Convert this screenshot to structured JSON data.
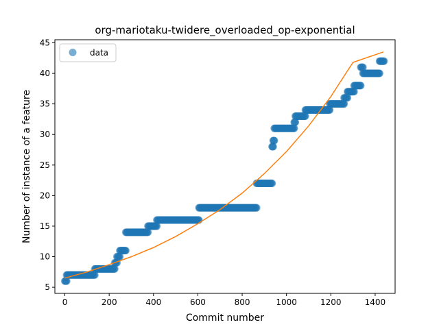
{
  "chart_data": {
    "type": "scatter",
    "title": "org-mariotaku-twidere_overloaded_op-exponential",
    "xlabel": "Commit number",
    "ylabel": "Number of instance of a feature",
    "xlim": [
      -45,
      1490
    ],
    "ylim": [
      4.0,
      45.5
    ],
    "xticks": [
      0,
      200,
      400,
      600,
      800,
      1000,
      1200,
      1400
    ],
    "yticks": [
      5,
      10,
      15,
      20,
      25,
      30,
      35,
      40,
      45
    ],
    "legend": {
      "position": "top-left",
      "entries": [
        "data"
      ]
    },
    "colors": {
      "data": "#1f77b4",
      "fit": "#ff7f0e"
    },
    "series": [
      {
        "name": "data",
        "kind": "scatter",
        "segments": [
          {
            "x_start": 0,
            "x_end": 8,
            "y": 6
          },
          {
            "x_start": 8,
            "x_end": 135,
            "y": 7
          },
          {
            "x_start": 135,
            "x_end": 225,
            "y": 8
          },
          {
            "x_start": 225,
            "x_end": 235,
            "y": 9
          },
          {
            "x_start": 235,
            "x_end": 248,
            "y": 10
          },
          {
            "x_start": 248,
            "x_end": 275,
            "y": 11
          },
          {
            "x_start": 275,
            "x_end": 375,
            "y": 14
          },
          {
            "x_start": 375,
            "x_end": 415,
            "y": 15
          },
          {
            "x_start": 415,
            "x_end": 605,
            "y": 16
          },
          {
            "x_start": 605,
            "x_end": 865,
            "y": 18
          },
          {
            "x_start": 865,
            "x_end": 935,
            "y": 22
          },
          {
            "x_start": 935,
            "x_end": 940,
            "y": 28
          },
          {
            "x_start": 940,
            "x_end": 945,
            "y": 29
          },
          {
            "x_start": 945,
            "x_end": 1035,
            "y": 31
          },
          {
            "x_start": 1035,
            "x_end": 1040,
            "y": 32
          },
          {
            "x_start": 1040,
            "x_end": 1085,
            "y": 33
          },
          {
            "x_start": 1085,
            "x_end": 1195,
            "y": 34
          },
          {
            "x_start": 1195,
            "x_end": 1260,
            "y": 35
          },
          {
            "x_start": 1260,
            "x_end": 1275,
            "y": 36
          },
          {
            "x_start": 1275,
            "x_end": 1305,
            "y": 37
          },
          {
            "x_start": 1305,
            "x_end": 1335,
            "y": 38
          },
          {
            "x_start": 1335,
            "x_end": 1345,
            "y": 41
          },
          {
            "x_start": 1345,
            "x_end": 1420,
            "y": 40
          },
          {
            "x_start": 1420,
            "x_end": 1440,
            "y": 42
          }
        ]
      },
      {
        "kind": "line",
        "x": [
          0,
          100,
          200,
          300,
          400,
          500,
          600,
          700,
          800,
          900,
          1000,
          1100,
          1200,
          1300,
          1437
        ],
        "y": [
          6.5,
          7.5,
          8.7,
          10.0,
          11.5,
          13.3,
          15.4,
          17.7,
          20.4,
          23.6,
          27.2,
          31.4,
          36.2,
          41.8,
          43.5
        ]
      }
    ]
  }
}
